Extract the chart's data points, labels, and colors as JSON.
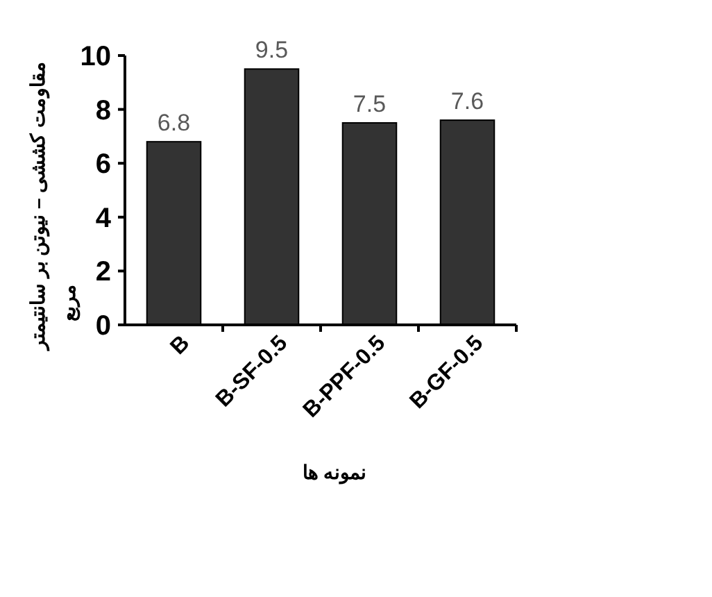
{
  "chart_data": {
    "type": "bar",
    "xlabel": "نمونه ها",
    "ylabel": "مقاومت کششی – نیوتن بر سانتیمتر\nمربع",
    "categories": [
      "B",
      "B-SF-0.5",
      "B-PPF-0.5",
      "B-GF-0.5"
    ],
    "values": [
      6.8,
      9.5,
      7.5,
      7.6
    ],
    "color": "#333333",
    "ylim": [
      0,
      10
    ],
    "yticks": [
      0,
      2,
      4,
      6,
      8,
      10
    ],
    "data_labels": true
  }
}
